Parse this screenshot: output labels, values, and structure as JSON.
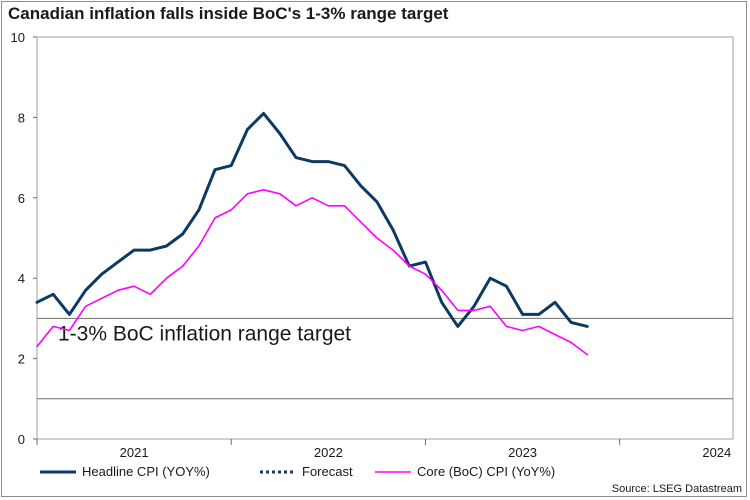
{
  "title": "Canadian inflation falls inside BoC's 1-3% range target",
  "source": "Source: LSEG Datastream",
  "chart_data": {
    "type": "line",
    "title": "Canadian inflation falls inside BoC's 1-3% range target",
    "xlabel": "",
    "ylabel": "",
    "ylim": [
      0,
      10
    ],
    "yticks": [
      "0",
      "2",
      "4",
      "6",
      "8",
      "10"
    ],
    "year_labels": [
      "2021",
      "2022",
      "2023",
      "2024"
    ],
    "x_month_range": [
      0,
      43
    ],
    "year_label_months": [
      6,
      18,
      30,
      42
    ],
    "year_tick_months": [
      0,
      12,
      24,
      36
    ],
    "annotation": "1-3% BoC inflation range target",
    "reference_lines": [
      1,
      3
    ],
    "series": [
      {
        "name": "Headline CPI (YOY%)",
        "color": "#0c3a63",
        "start_month": 0,
        "values": [
          3.4,
          3.6,
          3.1,
          3.7,
          4.1,
          4.4,
          4.7,
          4.7,
          4.8,
          5.1,
          5.7,
          6.7,
          6.8,
          7.7,
          8.1,
          7.6,
          7.0,
          6.9,
          6.9,
          6.8,
          6.3,
          5.9,
          5.2,
          4.3,
          4.4,
          3.4,
          2.8,
          3.3,
          4.0,
          3.8,
          3.1,
          3.1,
          3.4,
          2.9,
          2.8
        ]
      },
      {
        "name": "Forecast",
        "color": "#0c3a63",
        "start_month": 0,
        "values": []
      },
      {
        "name": "Core (BoC) CPI (YoY%)",
        "color": "#ff00ff",
        "start_month": 0,
        "values": [
          2.3,
          2.8,
          2.7,
          3.3,
          3.5,
          3.7,
          3.8,
          3.6,
          4.0,
          4.3,
          4.8,
          5.5,
          5.7,
          6.1,
          6.2,
          6.1,
          5.8,
          6.0,
          5.8,
          5.8,
          5.4,
          5.0,
          4.7,
          4.3,
          4.1,
          3.7,
          3.2,
          3.2,
          3.3,
          2.8,
          2.7,
          2.8,
          2.6,
          2.4,
          2.1
        ]
      }
    ]
  }
}
